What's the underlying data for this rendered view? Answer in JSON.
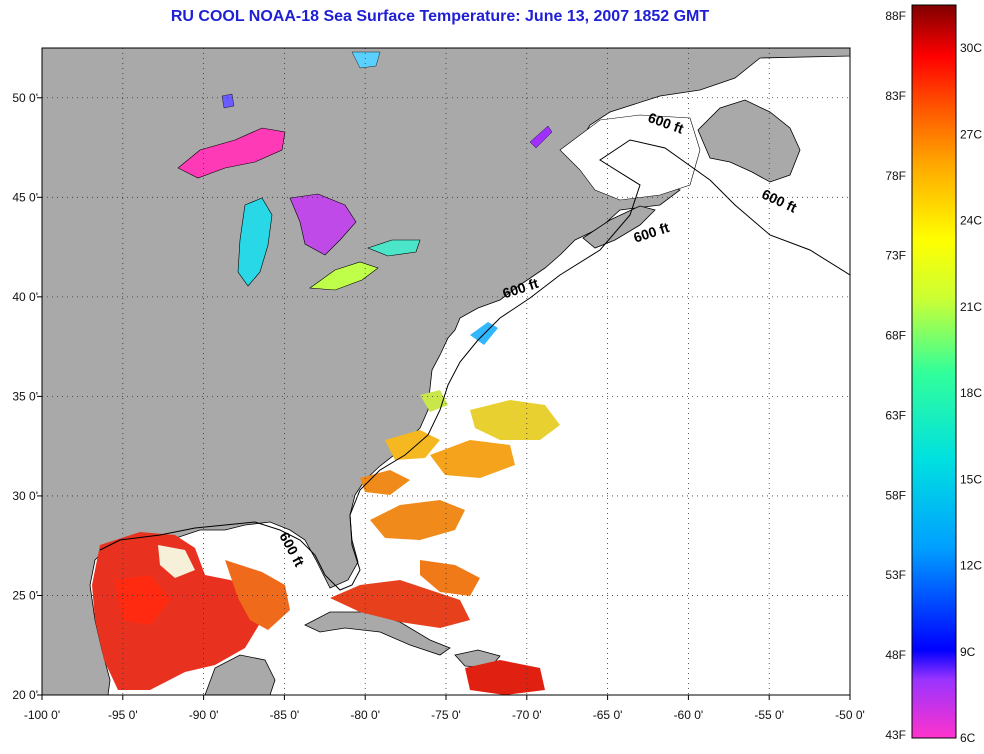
{
  "title": "RU COOL  NOAA-18  Sea Surface Temperature:  June 13, 2007 1852 GMT",
  "map": {
    "lon_range": [
      -100,
      -50
    ],
    "lat_range": [
      20,
      52.5
    ],
    "lon_ticks": [
      {
        "value": -100,
        "label": "-100 0'"
      },
      {
        "value": -95,
        "label": "-95 0'"
      },
      {
        "value": -90,
        "label": "-90 0'"
      },
      {
        "value": -85,
        "label": "-85 0'"
      },
      {
        "value": -80,
        "label": "-80 0'"
      },
      {
        "value": -75,
        "label": "-75 0'"
      },
      {
        "value": -70,
        "label": "-70 0'"
      },
      {
        "value": -65,
        "label": "-65 0'"
      },
      {
        "value": -60,
        "label": "-60 0'"
      },
      {
        "value": -55,
        "label": "-55 0'"
      },
      {
        "value": -50,
        "label": "-50 0'"
      }
    ],
    "lat_ticks": [
      {
        "value": 20,
        "label": "20 0'"
      },
      {
        "value": 25,
        "label": "25 0'"
      },
      {
        "value": 30,
        "label": "30 0'"
      },
      {
        "value": 35,
        "label": "35 0'"
      },
      {
        "value": 40,
        "label": "40 0'"
      },
      {
        "value": 45,
        "label": "45 0'"
      },
      {
        "value": 50,
        "label": "50 0'"
      }
    ],
    "grid": "dotted",
    "land_color": "#a9a9a9",
    "water_color": "#ffffff",
    "contour_labels": [
      {
        "text": "600 ft",
        "lon": -61.5,
        "lat": 48.5,
        "angle": 20
      },
      {
        "text": "600 ft",
        "lon": -54.5,
        "lat": 44.6,
        "angle": 25
      },
      {
        "text": "600 ft",
        "lon": -62.2,
        "lat": 43.0,
        "angle": -18
      },
      {
        "text": "600 ft",
        "lon": -70.3,
        "lat": 40.2,
        "angle": -18
      },
      {
        "text": "600 ft",
        "lon": -84.8,
        "lat": 27.2,
        "angle": 62
      }
    ]
  },
  "colorbar": {
    "fahrenheit_labels": [
      "88F",
      "83F",
      "78F",
      "73F",
      "68F",
      "63F",
      "58F",
      "53F",
      "48F",
      "43F"
    ],
    "celsius_labels": [
      "30C",
      "27C",
      "24C",
      "21C",
      "18C",
      "15C",
      "12C",
      "9C",
      "6C"
    ],
    "min_c": 6,
    "max_c": 31.5,
    "colors": [
      "#ff33cc",
      "#9933ff",
      "#0000ff",
      "#00a0ff",
      "#00e0e0",
      "#33ff99",
      "#ccff33",
      "#ffff00",
      "#ffaa00",
      "#ff5500",
      "#ff0000",
      "#800000"
    ]
  }
}
